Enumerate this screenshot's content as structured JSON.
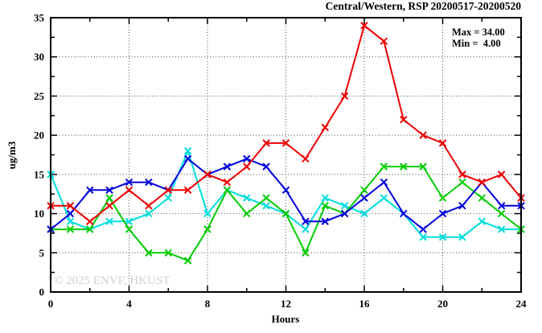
{
  "title": "Central/Western, RSP 20200517-20200520",
  "stats": {
    "max_label": "Max = 34.00",
    "min_label": "Min =  4.00"
  },
  "watermark": "© 2025 ENVF, HKUST",
  "chart_data": {
    "type": "line",
    "title": "Central/Western, RSP 20200517-20200520",
    "xlabel": "Hours",
    "ylabel": "ug/m3",
    "xlim": [
      0,
      24
    ],
    "ylim": [
      0,
      35
    ],
    "x_ticks": [
      0,
      4,
      8,
      12,
      16,
      20,
      24
    ],
    "x_minor_ticks": [
      2,
      6,
      10,
      14,
      18,
      22
    ],
    "y_ticks": [
      0,
      5,
      10,
      15,
      20,
      25,
      30,
      35
    ],
    "y_minor_ticks": [
      2.5,
      7.5,
      12.5,
      17.5,
      22.5,
      27.5,
      32.5
    ],
    "grid": true,
    "legend_position": "none",
    "x": [
      0,
      1,
      2,
      3,
      4,
      5,
      6,
      7,
      8,
      9,
      10,
      11,
      12,
      13,
      14,
      15,
      16,
      17,
      18,
      19,
      20,
      21,
      22,
      23,
      24
    ],
    "series": [
      {
        "name": "cyan",
        "color": "#00dddd",
        "values": [
          15,
          9,
          8,
          9,
          9,
          10,
          12,
          18,
          10,
          13,
          12,
          11,
          10,
          8,
          12,
          11,
          10,
          12,
          10,
          7,
          7,
          7,
          9,
          8,
          8
        ]
      },
      {
        "name": "green",
        "color": "#00cc00",
        "values": [
          8,
          8,
          8,
          12,
          8,
          5,
          5,
          4,
          8,
          13,
          10,
          12,
          10,
          5,
          11,
          10,
          13,
          16,
          16,
          16,
          12,
          14,
          12,
          10,
          8
        ]
      },
      {
        "name": "blue",
        "color": "#0000dd",
        "values": [
          8,
          10,
          13,
          13,
          14,
          14,
          13,
          17,
          15,
          16,
          17,
          16,
          13,
          9,
          9,
          10,
          12,
          14,
          10,
          8,
          10,
          11,
          14,
          11,
          11
        ]
      },
      {
        "name": "red",
        "color": "#ee0000",
        "values": [
          11,
          11,
          9,
          11,
          13,
          11,
          13,
          13,
          15,
          14,
          16,
          19,
          19,
          17,
          21,
          25,
          34,
          32,
          22,
          20,
          19,
          15,
          14,
          15,
          12
        ]
      }
    ],
    "annotations": {
      "max": 34.0,
      "min": 4.0
    },
    "colors": {
      "grid": "#444444",
      "frame": "#000000",
      "watermark": "#c9d3da"
    }
  }
}
